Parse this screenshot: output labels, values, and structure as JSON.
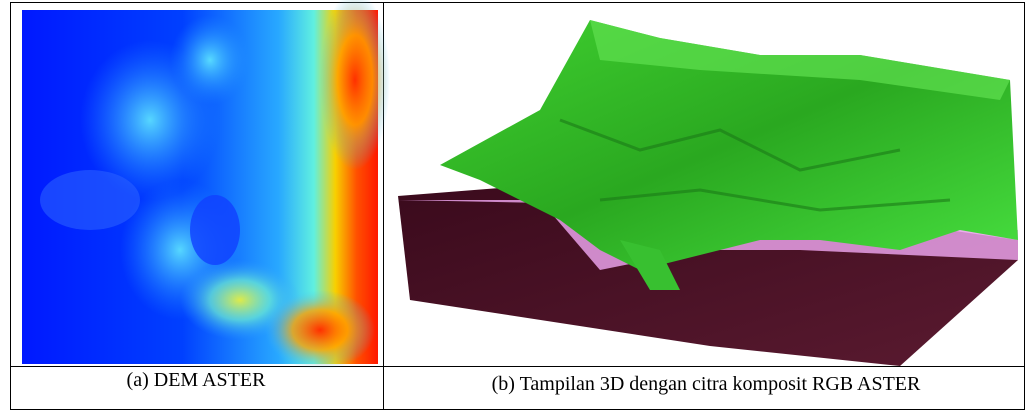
{
  "figures": [
    {
      "caption": "(a) DEM ASTER"
    },
    {
      "caption": "(b) Tampilan 3D dengan citra komposit RGB ASTER"
    }
  ]
}
